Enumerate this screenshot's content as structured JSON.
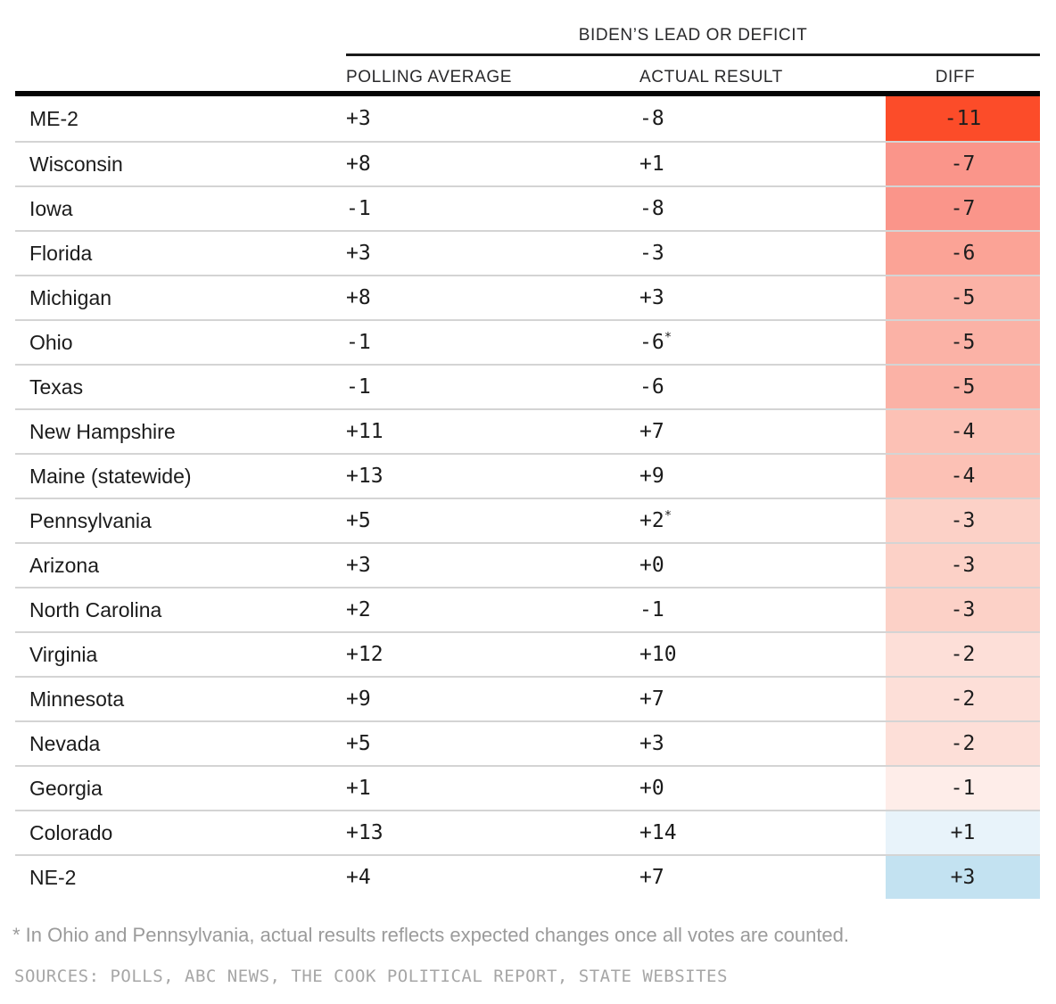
{
  "chart_data": {
    "type": "table",
    "spanner": "BIDEN’S LEAD OR DEFICIT",
    "columns": {
      "state": "",
      "polling": "POLLING AVERAGE",
      "actual": "ACTUAL RESULT",
      "diff": "DIFF"
    },
    "rows": [
      {
        "state": "ME-2",
        "poll": "+3",
        "actual": "-8",
        "asterisk": "",
        "diff": "-11",
        "diff_color": "#FC4C29"
      },
      {
        "state": "Wisconsin",
        "poll": "+8",
        "actual": "+1",
        "asterisk": "",
        "diff": "-7",
        "diff_color": "#FA958A"
      },
      {
        "state": "Iowa",
        "poll": "-1",
        "actual": "-8",
        "asterisk": "",
        "diff": "-7",
        "diff_color": "#FA958A"
      },
      {
        "state": "Florida",
        "poll": "+3",
        "actual": "-3",
        "asterisk": "",
        "diff": "-6",
        "diff_color": "#FBA396"
      },
      {
        "state": "Michigan",
        "poll": "+8",
        "actual": "+3",
        "asterisk": "",
        "diff": "-5",
        "diff_color": "#FBB2A6"
      },
      {
        "state": "Ohio",
        "poll": "-1",
        "actual": "-6",
        "asterisk": "*",
        "diff": "-5",
        "diff_color": "#FBB2A6"
      },
      {
        "state": "Texas",
        "poll": "-1",
        "actual": "-6",
        "asterisk": "",
        "diff": "-5",
        "diff_color": "#FBB2A6"
      },
      {
        "state": "New Hampshire",
        "poll": "+11",
        "actual": "+7",
        "asterisk": "",
        "diff": "-4",
        "diff_color": "#FCC1B5"
      },
      {
        "state": "Maine (statewide)",
        "poll": "+13",
        "actual": "+9",
        "asterisk": "",
        "diff": "-4",
        "diff_color": "#FCC1B5"
      },
      {
        "state": "Pennsylvania",
        "poll": "+5",
        "actual": "+2",
        "asterisk": "*",
        "diff": "-3",
        "diff_color": "#FCD1C7"
      },
      {
        "state": "Arizona",
        "poll": "+3",
        "actual": "+0",
        "asterisk": "",
        "diff": "-3",
        "diff_color": "#FCD1C7"
      },
      {
        "state": "North Carolina",
        "poll": "+2",
        "actual": "-1",
        "asterisk": "",
        "diff": "-3",
        "diff_color": "#FCD1C7"
      },
      {
        "state": "Virginia",
        "poll": "+12",
        "actual": "+10",
        "asterisk": "",
        "diff": "-2",
        "diff_color": "#FDDFD8"
      },
      {
        "state": "Minnesota",
        "poll": "+9",
        "actual": "+7",
        "asterisk": "",
        "diff": "-2",
        "diff_color": "#FDDFD8"
      },
      {
        "state": "Nevada",
        "poll": "+5",
        "actual": "+3",
        "asterisk": "",
        "diff": "-2",
        "diff_color": "#FDDFD8"
      },
      {
        "state": "Georgia",
        "poll": "+1",
        "actual": "+0",
        "asterisk": "",
        "diff": "-1",
        "diff_color": "#FEEDE9"
      },
      {
        "state": "Colorado",
        "poll": "+13",
        "actual": "+14",
        "asterisk": "",
        "diff": "+1",
        "diff_color": "#E8F3FA"
      },
      {
        "state": "NE-2",
        "poll": "+4",
        "actual": "+7",
        "asterisk": "",
        "diff": "+3",
        "diff_color": "#C3E2F1"
      }
    ],
    "text_color_on_diff": "#1E1E1E",
    "footnote": "* In Ohio and Pennsylvania, actual results reflects expected changes once all votes are counted.",
    "sources": "SOURCES: POLLS, ABC NEWS, THE COOK POLITICAL REPORT, STATE WEBSITES"
  }
}
